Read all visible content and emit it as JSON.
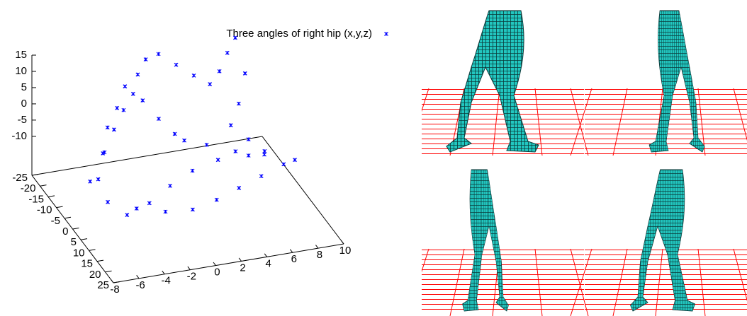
{
  "chart_data": {
    "type": "scatter3d",
    "series": [
      {
        "name": "Three angles of right hip (x,y,z)",
        "color": "#0000ff",
        "x": [
          -6,
          -6,
          -5,
          -4,
          -3,
          -2,
          -1,
          0,
          1,
          2,
          3,
          4,
          5,
          6,
          7,
          7,
          6,
          5,
          6,
          7,
          6,
          4,
          2,
          0,
          -2,
          -4,
          -5,
          -3,
          -1,
          1,
          3,
          5,
          7,
          9,
          10,
          8,
          6,
          4,
          2,
          1,
          0,
          -1,
          -2,
          -3,
          -4,
          -5
        ],
        "y": [
          -5,
          0,
          -5,
          -10,
          -12,
          -15,
          -15,
          -18,
          -18,
          -15,
          -12,
          -10,
          -12,
          -15,
          -18,
          -12,
          -8,
          -5,
          -2,
          0,
          -2,
          -5,
          -5,
          -3,
          0,
          2,
          -2,
          0,
          2,
          3,
          2,
          0,
          -2,
          -4,
          -5,
          -8,
          -10,
          -12,
          -10,
          -8,
          -10,
          -12,
          -10,
          -8,
          -6,
          -4
        ],
        "z": [
          -12,
          -8,
          -4,
          0,
          4,
          8,
          11,
          13,
          14,
          12,
          10,
          8,
          10,
          13,
          15,
          8,
          2,
          -2,
          -5,
          -8,
          -10,
          -12,
          -14,
          -16,
          -18,
          -19,
          -17,
          -19,
          -20,
          -20,
          -19,
          -18,
          -17,
          -16,
          -16,
          -15,
          -14,
          -12,
          -8,
          -4,
          0,
          5,
          9,
          6,
          2,
          -3
        ]
      }
    ],
    "xlim": [
      -8,
      10
    ],
    "ylim": [
      -25,
      25
    ],
    "zlim": [
      -22,
      15
    ],
    "xticks": [
      -8,
      -6,
      -4,
      -2,
      0,
      2,
      4,
      6,
      8,
      10
    ],
    "yticks": [
      -25,
      -20,
      -15,
      -10,
      -5,
      0,
      5,
      10,
      15,
      20,
      25
    ],
    "zticks": [
      -10,
      -5,
      0,
      5,
      10,
      15
    ]
  }
}
